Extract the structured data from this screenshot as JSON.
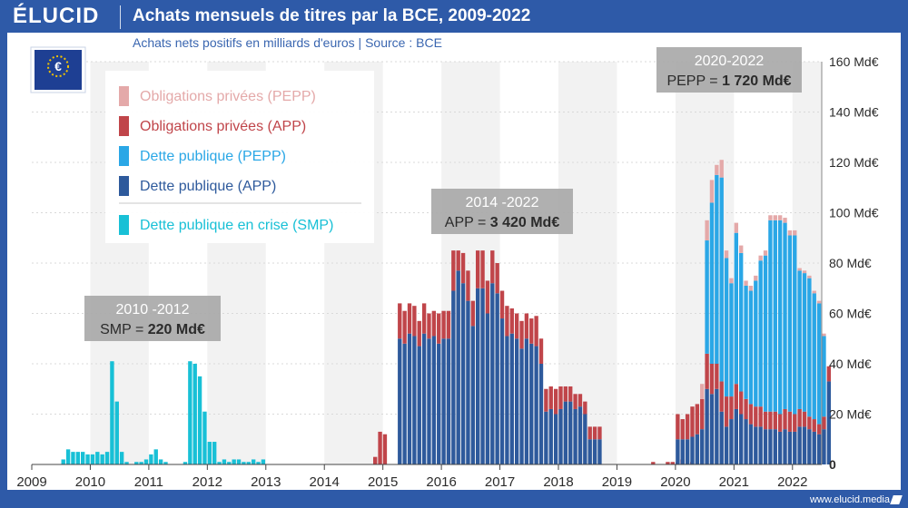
{
  "header": {
    "brand": "ÉLUCID",
    "title": "Achats mensuels de titres par la BCE, 2009-2022",
    "subtitle": "Achats nets positifs en milliards d'euros  |  Source : BCE"
  },
  "footer": {
    "url": "www.elucid.media"
  },
  "colors": {
    "pepp_private": "#e4a9a9",
    "app_private": "#c0454a",
    "pepp_public": "#2aa7e6",
    "app_public": "#2e5a9c",
    "smp": "#18c0d6"
  },
  "chart_data": {
    "type": "bar",
    "title": "Achats mensuels de titres par la BCE, 2009-2022",
    "subtitle": "Achats nets positifs en milliards d'euros | Source : BCE",
    "ylim": [
      0,
      160
    ],
    "yticks": [
      0,
      20,
      40,
      60,
      80,
      100,
      120,
      140,
      160
    ],
    "ytick_labels": [
      "0",
      "20 Md€",
      "40 Md€",
      "60 Md€",
      "80 Md€",
      "100 Md€",
      "120 Md€",
      "140 Md€",
      "160 Md€"
    ],
    "x_range": [
      2009,
      2022.5
    ],
    "xticks": [
      2009,
      2010,
      2011,
      2012,
      2013,
      2014,
      2015,
      2016,
      2017,
      2018,
      2019,
      2020,
      2021,
      2022
    ],
    "xtick_labels": [
      "2009",
      "2010",
      "2011",
      "2012",
      "2013",
      "2014",
      "2015",
      "2016",
      "2017",
      "2018",
      "2019",
      "2020",
      "2021",
      "2022"
    ],
    "legend": [
      "Obligations privées (PEPP)",
      "Obligations privées (APP)",
      "Dette publique (PEPP)",
      "Dette publique (APP)",
      "Dette publique en crise (SMP)"
    ],
    "series_names": [
      "Dette publique en crise (SMP)",
      "Dette publique (APP)",
      "Obligations privées (APP)",
      "Dette publique (PEPP)",
      "Obligations privées (PEPP)"
    ],
    "annotations": [
      {
        "title": "2010 -2012",
        "label": "SMP = ",
        "value": "220 Md€"
      },
      {
        "title": "2014 -2022",
        "label": "APP = ",
        "value": "3 420 Md€"
      },
      {
        "title": "2020-2022",
        "label": "PEPP = ",
        "value": "1 720  Md€"
      }
    ],
    "segments": [
      {
        "start": 2009.5,
        "smp": [
          2,
          6,
          5,
          5,
          5,
          4,
          4,
          5,
          4,
          5,
          41,
          25,
          5,
          1,
          0,
          1,
          1,
          2,
          4,
          6,
          2,
          1,
          0,
          0,
          0,
          1,
          41,
          40,
          35,
          21,
          9,
          9,
          1,
          2,
          1,
          2,
          2,
          1,
          1,
          2,
          1,
          2
        ]
      },
      {
        "start": 2014.83,
        "app_pub": [
          0,
          0,
          0
        ],
        "app_priv": [
          3,
          13,
          12
        ]
      },
      {
        "start": 2015.25,
        "app_pub": [
          50,
          48,
          52,
          51,
          47,
          52,
          50,
          51,
          48,
          50,
          50,
          69,
          77,
          72,
          65,
          55,
          70,
          70,
          60,
          72,
          68,
          58,
          51,
          52,
          50,
          46,
          50,
          48,
          47,
          40,
          21,
          22,
          20,
          22,
          25,
          25,
          22,
          23,
          20,
          10,
          10,
          10
        ],
        "app_priv": [
          14,
          13,
          12,
          12,
          10,
          12,
          10,
          10,
          12,
          11,
          11,
          16,
          8,
          12,
          12,
          10,
          15,
          15,
          13,
          13,
          12,
          11,
          12,
          10,
          10,
          11,
          10,
          10,
          12,
          10,
          9,
          9,
          10,
          9,
          6,
          6,
          6,
          5,
          5,
          5,
          5,
          5
        ]
      },
      {
        "start": 2019.58,
        "app_pub": [
          0,
          0,
          0,
          0,
          0,
          0,
          0,
          0,
          0
        ],
        "app_priv": [
          1,
          0,
          0,
          1,
          1,
          1,
          2,
          0,
          1
        ]
      },
      {
        "start": 2020.0,
        "app_pub": [
          10,
          10,
          10,
          11,
          12,
          14,
          30,
          28,
          30,
          21,
          15,
          18,
          22,
          20,
          18,
          16,
          15,
          15,
          14,
          14,
          14,
          13,
          14,
          13,
          13,
          15,
          15,
          14,
          13,
          12,
          14,
          33
        ],
        "app_priv": [
          10,
          8,
          10,
          12,
          12,
          12,
          14,
          12,
          10,
          12,
          12,
          9,
          10,
          9,
          8,
          8,
          8,
          8,
          7,
          7,
          7,
          7,
          8,
          8,
          7,
          7,
          6,
          5,
          5,
          4,
          5,
          6
        ],
        "pepp_pub": [
          0,
          0,
          0,
          0,
          0,
          0,
          45,
          64,
          75,
          81,
          55,
          45,
          60,
          55,
          45,
          45,
          50,
          58,
          62,
          76,
          76,
          77,
          74,
          70,
          71,
          55,
          55,
          55,
          50,
          48,
          32,
          0
        ],
        "pepp_priv": [
          0,
          0,
          0,
          0,
          0,
          6,
          8,
          9,
          4,
          7,
          3,
          2,
          4,
          3,
          2,
          2,
          2,
          2,
          2,
          2,
          2,
          2,
          2,
          2,
          2,
          1,
          1,
          1,
          1,
          1,
          1,
          0
        ]
      }
    ]
  }
}
